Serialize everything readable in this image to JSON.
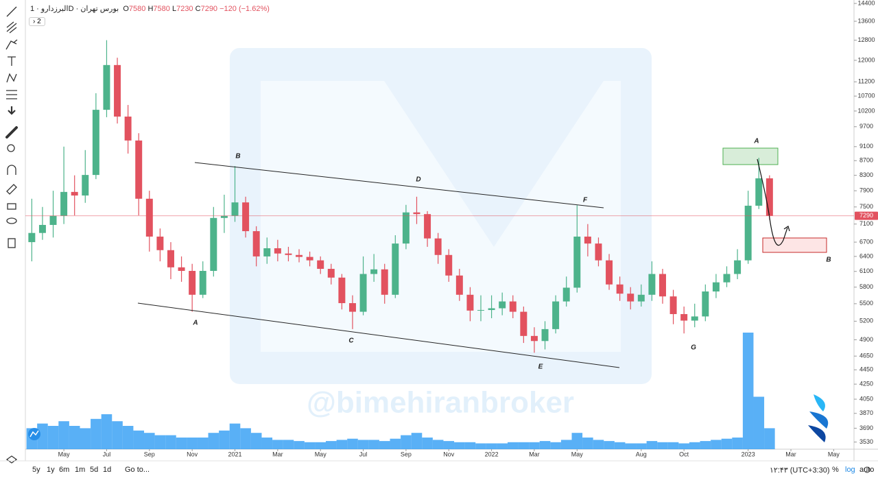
{
  "header": {
    "symbol": "البرزدارو",
    "interval": "1D",
    "exchange": "بورس تهران",
    "ohlc": [
      {
        "label": "O",
        "value": 7580
      },
      {
        "label": "H",
        "value": 7580
      },
      {
        "label": "L",
        "value": 7230
      },
      {
        "label": "C",
        "value": 7290
      }
    ],
    "change": "−120 (−1.62%)",
    "collapsed": "2"
  },
  "chart_data": {
    "type": "candlestick",
    "log": true,
    "grid": false,
    "ylim": [
      3450,
      14560
    ],
    "yticks": [
      14400,
      13600,
      12800,
      12000,
      11200,
      10700,
      10200,
      9700,
      9100,
      8700,
      8300,
      7900,
      7500,
      7100,
      6700,
      6400,
      6100,
      5800,
      5500,
      5200,
      4900,
      4650,
      4450,
      4250,
      4050,
      3870,
      3690,
      3530
    ],
    "xlim": [
      -2.1,
      75.4
    ],
    "xticks": [
      {
        "value": 1.5,
        "label": "May"
      },
      {
        "value": 5.5,
        "label": "Jul"
      },
      {
        "value": 9.5,
        "label": "Sep"
      },
      {
        "value": 13.5,
        "label": "Nov"
      },
      {
        "value": 17.5,
        "label": "2021"
      },
      {
        "value": 21.5,
        "label": "Mar"
      },
      {
        "value": 25.5,
        "label": "May"
      },
      {
        "value": 29.5,
        "label": "Jul"
      },
      {
        "value": 33.5,
        "label": "Sep"
      },
      {
        "value": 37.5,
        "label": "Nov"
      },
      {
        "value": 41.5,
        "label": "2022"
      },
      {
        "value": 45.5,
        "label": "Mar"
      },
      {
        "value": 49.5,
        "label": "May"
      },
      {
        "value": 55.5,
        "label": "Aug"
      },
      {
        "value": 59.5,
        "label": "Oct"
      },
      {
        "value": 65.5,
        "label": "2023"
      },
      {
        "value": 69.5,
        "label": "Mar"
      },
      {
        "value": 73.5,
        "label": "May"
      }
    ],
    "up_color": "#4db38b",
    "down_color": "#e2525f",
    "candles": {
      "x": [
        -1.5,
        -0.5,
        0.5,
        1.5,
        2.5,
        3.5,
        4.5,
        5.5,
        6.5,
        7.5,
        8.5,
        9.5,
        10.5,
        11.5,
        12.5,
        13.5,
        14.5,
        15.5,
        16.5,
        17.5,
        18.5,
        19.5,
        20.5,
        21.5,
        22.5,
        23.5,
        24.5,
        25.5,
        26.5,
        27.5,
        28.5,
        29.5,
        30.5,
        31.5,
        32.5,
        33.5,
        34.5,
        35.5,
        36.5,
        37.5,
        38.5,
        39.5,
        40.5,
        41.5,
        42.5,
        43.5,
        44.5,
        45.5,
        46.5,
        47.5,
        48.5,
        49.5,
        50.5,
        51.5,
        52.5,
        53.5,
        54.5,
        55.5,
        56.5,
        57.5,
        58.5,
        59.5,
        60.5,
        61.5,
        62.5,
        63.5,
        64.5,
        65.5,
        66.5,
        67.5
      ],
      "open": [
        6700,
        6900,
        7080,
        7290,
        7870,
        7780,
        8310,
        10240,
        11820,
        10020,
        9280,
        7700,
        6820,
        6530,
        6180,
        6110,
        5660,
        6110,
        7240,
        7290,
        7610,
        6940,
        6400,
        6570,
        6460,
        6430,
        6390,
        6320,
        6150,
        5980,
        5510,
        5360,
        6050,
        6140,
        5660,
        6670,
        7370,
        7330,
        6780,
        6430,
        6020,
        5660,
        5380,
        5390,
        5420,
        5540,
        5360,
        4960,
        4880,
        5070,
        5540,
        5790,
        6820,
        6670,
        6320,
        5850,
        5680,
        5540,
        5660,
        6050,
        5630,
        5320,
        5210,
        5280,
        5720,
        5890,
        6050,
        6320,
        7530,
        8220
      ],
      "high": [
        7700,
        7500,
        7900,
        9100,
        8300,
        9000,
        10800,
        12800,
        12100,
        10400,
        9500,
        7900,
        7000,
        6700,
        6400,
        6250,
        6300,
        7500,
        7800,
        8550,
        7750,
        7050,
        6800,
        6750,
        6600,
        6550,
        6500,
        6400,
        6250,
        6050,
        5650,
        6400,
        6450,
        6250,
        6850,
        7550,
        7750,
        7400,
        6900,
        6550,
        6150,
        5800,
        5650,
        5650,
        5700,
        5650,
        5450,
        5100,
        5200,
        5650,
        6000,
        7540,
        7100,
        6800,
        6450,
        6000,
        5800,
        5850,
        6300,
        6150,
        5750,
        5450,
        5500,
        5850,
        6050,
        6200,
        6550,
        7900,
        8780,
        8300
      ],
      "low": [
        6300,
        6750,
        6800,
        7100,
        7300,
        7600,
        8200,
        10000,
        9800,
        8900,
        7300,
        6500,
        6300,
        5950,
        5900,
        5360,
        5600,
        6000,
        6900,
        7150,
        6800,
        6200,
        6250,
        6300,
        6300,
        6280,
        6200,
        6050,
        5850,
        5400,
        5070,
        5300,
        5900,
        5500,
        5600,
        6550,
        7100,
        6600,
        6250,
        5900,
        5550,
        5200,
        5200,
        5250,
        5300,
        5250,
        4850,
        4700,
        4750,
        5000,
        5450,
        5700,
        6400,
        6200,
        5750,
        5550,
        5400,
        5450,
        5550,
        5500,
        5150,
        5000,
        5100,
        5200,
        5600,
        5800,
        5950,
        6250,
        7450,
        7200
      ],
      "close": [
        6900,
        7080,
        7290,
        7870,
        7780,
        8310,
        10240,
        11820,
        10020,
        9280,
        7700,
        6820,
        6530,
        6180,
        6110,
        5660,
        6110,
        7240,
        7290,
        7610,
        6940,
        6400,
        6570,
        6460,
        6430,
        6390,
        6320,
        6150,
        5980,
        5510,
        5360,
        6050,
        6140,
        5660,
        6670,
        7370,
        7330,
        6780,
        6430,
        6020,
        5660,
        5380,
        5390,
        5420,
        5540,
        5360,
        4960,
        4880,
        5070,
        5540,
        5790,
        6820,
        6670,
        6320,
        5850,
        5680,
        5540,
        5660,
        6050,
        5630,
        5320,
        5210,
        5280,
        5720,
        5890,
        6050,
        6320,
        7530,
        8220,
        7290
      ]
    },
    "volume": {
      "color": "#2196f3",
      "ylim": [
        0,
        100
      ],
      "values": [
        18,
        22,
        20,
        24,
        20,
        18,
        26,
        30,
        24,
        20,
        16,
        14,
        12,
        12,
        10,
        10,
        10,
        14,
        16,
        22,
        18,
        14,
        10,
        8,
        8,
        7,
        6,
        6,
        7,
        8,
        9,
        8,
        8,
        7,
        9,
        12,
        14,
        10,
        8,
        7,
        6,
        6,
        5,
        5,
        5,
        6,
        6,
        6,
        7,
        6,
        8,
        14,
        10,
        8,
        7,
        6,
        5,
        5,
        7,
        6,
        6,
        5,
        6,
        7,
        8,
        9,
        10,
        100,
        45,
        18
      ]
    },
    "last_price": 7290,
    "annotations": [
      "A",
      "B",
      "C",
      "D",
      "E",
      "F",
      "G",
      "A",
      "B"
    ],
    "watermark": "@bimehiranbroker"
  },
  "footer": {
    "ranges": [
      "5y",
      "1y",
      "6m",
      "1m",
      "5d",
      "1d"
    ],
    "goto": "Go to...",
    "time": "۱۲:۴۳ (UTC+3:30)",
    "percent": "%",
    "log": "log",
    "auto": "auto"
  }
}
